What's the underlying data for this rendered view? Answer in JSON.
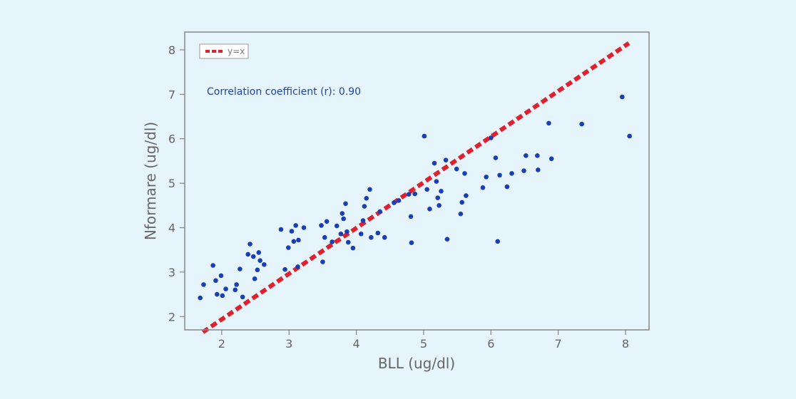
{
  "chart_data": {
    "type": "scatter",
    "title": "",
    "xlabel": "BLL (ug/dl)",
    "ylabel": "Nformare (ug/dl)",
    "xlim": [
      1.45,
      8.35
    ],
    "ylim": [
      1.7,
      8.4
    ],
    "xticks": [
      2,
      3,
      4,
      5,
      6,
      7,
      8
    ],
    "yticks": [
      2,
      3,
      4,
      5,
      6,
      7,
      8
    ],
    "grid": false,
    "legend": {
      "position": "top-left",
      "entries": [
        "y=x"
      ]
    },
    "annotation": "Correlation coefficient (r): 0.90",
    "colors": {
      "points": "#1a3fb5",
      "reference_line": "#e0202e",
      "frame": "#888888",
      "background": "#e6f4fb"
    },
    "reference_line": {
      "name": "y=x",
      "x": [
        1.72,
        8.05
      ],
      "y": [
        1.65,
        8.15
      ]
    },
    "series": [
      {
        "x": [
          1.68,
          1.73,
          1.87,
          1.91,
          1.93,
          1.99,
          2.01,
          2.06,
          2.2,
          2.22,
          2.27,
          2.31,
          2.39,
          2.42,
          2.47,
          2.49,
          2.53,
          2.55,
          2.57,
          2.63,
          2.88,
          2.94,
          2.99,
          3.04,
          3.07,
          3.1,
          3.13,
          3.14,
          3.22,
          3.48,
          3.5,
          3.53,
          3.56,
          3.64,
          3.71,
          3.77,
          3.79,
          3.81,
          3.84,
          3.86,
          3.88,
          3.95,
          4.07,
          4.1,
          4.12,
          4.15,
          4.2,
          4.22,
          4.32,
          4.35,
          4.42,
          4.56,
          4.63,
          4.78,
          4.81,
          4.82,
          4.87,
          5.01,
          5.05,
          5.09,
          5.16,
          5.19,
          5.21,
          5.23,
          5.26,
          5.33,
          5.35,
          5.49,
          5.55,
          5.57,
          5.61,
          5.63,
          5.88,
          5.93,
          6.0,
          6.07,
          6.1,
          6.13,
          6.24,
          6.31,
          6.49,
          6.52,
          6.69,
          6.7,
          6.9,
          6.86,
          7.35,
          7.95,
          8.06
        ],
        "y": [
          2.42,
          2.72,
          3.15,
          2.81,
          2.5,
          2.92,
          2.47,
          2.62,
          2.6,
          2.72,
          3.07,
          2.44,
          3.4,
          3.63,
          3.35,
          2.85,
          3.05,
          3.44,
          3.26,
          3.17,
          3.96,
          3.06,
          3.55,
          3.92,
          3.69,
          4.05,
          3.12,
          3.72,
          4.0,
          4.05,
          3.23,
          3.78,
          4.14,
          3.68,
          4.04,
          3.86,
          4.32,
          4.2,
          4.54,
          3.91,
          3.67,
          3.54,
          3.86,
          4.16,
          4.48,
          4.66,
          4.86,
          3.78,
          3.88,
          4.36,
          3.78,
          4.56,
          4.61,
          4.75,
          4.25,
          3.66,
          4.76,
          6.06,
          4.86,
          4.42,
          5.45,
          5.04,
          4.67,
          4.5,
          4.82,
          5.52,
          3.74,
          5.32,
          4.31,
          4.57,
          5.22,
          4.72,
          4.9,
          5.14,
          6.02,
          5.57,
          3.69,
          5.18,
          4.92,
          5.22,
          5.28,
          5.62,
          5.62,
          5.3,
          5.55,
          6.35,
          6.33,
          6.94,
          6.06
        ]
      }
    ]
  }
}
